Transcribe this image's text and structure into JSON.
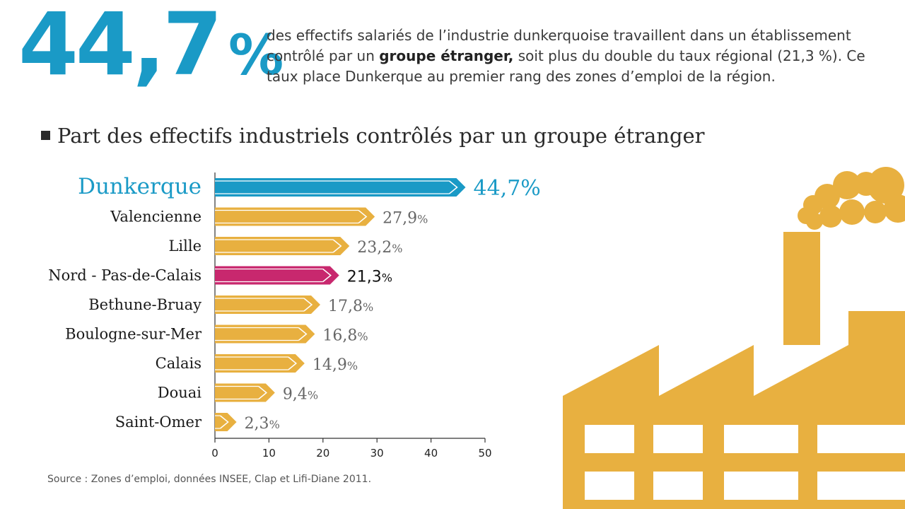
{
  "headline": {
    "value": "44,7",
    "percent_sign": "%",
    "text_part1": "des effectifs salariés de l’industrie dunkerquoise travaillent dans un établissement contrôlé par un ",
    "text_bold": "groupe étranger,",
    "text_part2": " soit plus du double du taux régional (21,3 %). Ce taux place Dunkerque au premier rang des zones d’emploi de la région."
  },
  "source": "Source : Zones d’emploi, données INSEE, Clap et Lifi-Diane 2011.",
  "colors": {
    "highlight": "#1a9ac6",
    "regional": "#c8286e",
    "default": "#e8b040",
    "factory": "#e8b040"
  },
  "chart_data": {
    "type": "bar",
    "orientation": "horizontal",
    "title": "Part des effectifs industriels contrôlés par un groupe étranger",
    "xlim": [
      0,
      50
    ],
    "xticks": [
      "0",
      "10",
      "20",
      "30",
      "40",
      "50"
    ],
    "grid": false,
    "categories": [
      "Dunkerque",
      "Valencienne",
      "Lille",
      "Nord - Pas-de-Calais",
      "Bethune-Bruay",
      "Boulogne-sur-Mer",
      "Calais",
      "Douai",
      "Saint-Omer"
    ],
    "values": [
      44.7,
      27.9,
      23.2,
      21.3,
      17.8,
      16.8,
      14.9,
      9.4,
      2.3
    ],
    "value_labels": [
      "44,7",
      "27,9",
      "23,2",
      "21,3",
      "17,8",
      "16,8",
      "14,9",
      "9,4",
      "2,3"
    ],
    "unit": "%",
    "styles": [
      "highlight",
      "default",
      "default",
      "regional",
      "default",
      "default",
      "default",
      "default",
      "default"
    ]
  }
}
